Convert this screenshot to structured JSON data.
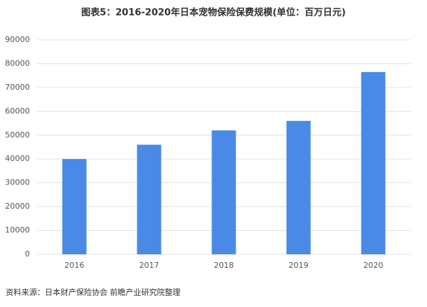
{
  "chart_data": {
    "type": "bar",
    "title": "图表5：2016-2020年日本宠物保险保费规模(单位：百万日元)",
    "categories": [
      "2016",
      "2017",
      "2018",
      "2019",
      "2020"
    ],
    "values": [
      40000,
      46000,
      52000,
      56000,
      76500
    ],
    "color": "#4a8ae6",
    "ylim": [
      0,
      90000
    ],
    "yticks": [
      0,
      10000,
      20000,
      30000,
      40000,
      50000,
      60000,
      70000,
      80000,
      90000
    ],
    "grid": true,
    "source": "资料来源：日本财产保险协会 前瞻产业研究院整理"
  }
}
